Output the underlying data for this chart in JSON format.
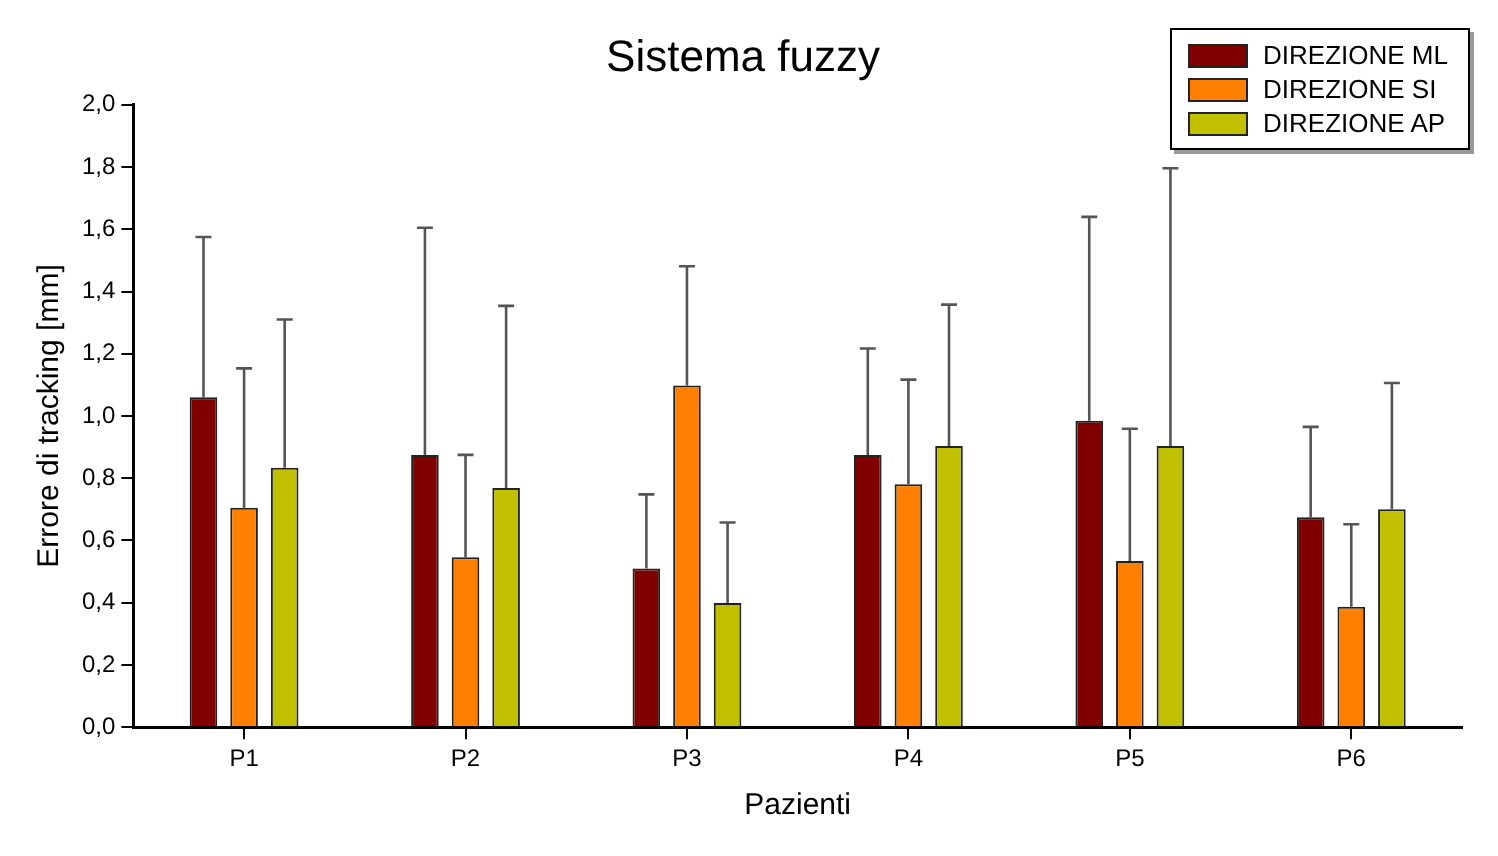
{
  "chart_data": {
    "type": "bar",
    "title": "Sistema fuzzy",
    "xlabel": "Pazienti",
    "ylabel": "Errore di tracking [mm]",
    "categories": [
      "P1",
      "P2",
      "P3",
      "P4",
      "P5",
      "P6"
    ],
    "series": [
      {
        "name": "DIREZIONE ML",
        "color": "#800000",
        "values": [
          1.06,
          0.875,
          0.51,
          0.875,
          0.985,
          0.675
        ],
        "errors": [
          [
            1.06,
            1.575
          ],
          [
            0.875,
            1.605
          ],
          [
            0.51,
            0.748
          ],
          [
            0.875,
            1.217
          ],
          [
            0.985,
            1.64
          ],
          [
            0.675,
            0.965
          ]
        ]
      },
      {
        "name": "DIREZIONE SI",
        "color": "#ff8000",
        "values": [
          0.705,
          0.546,
          1.098,
          0.781,
          0.534,
          0.387
        ],
        "errors": [
          [
            0.705,
            1.153
          ],
          [
            0.546,
            0.875
          ],
          [
            1.098,
            1.481
          ],
          [
            0.781,
            1.117
          ],
          [
            0.534,
            0.959
          ],
          [
            0.387,
            0.652
          ]
        ]
      },
      {
        "name": "DIREZIONE AP",
        "color": "#c0c000",
        "values": [
          0.834,
          0.769,
          0.399,
          0.904,
          0.904,
          0.7
        ],
        "errors": [
          [
            0.834,
            1.31
          ],
          [
            0.769,
            1.354
          ],
          [
            0.399,
            0.658
          ],
          [
            0.904,
            1.358
          ],
          [
            0.904,
            1.796
          ],
          [
            0.7,
            1.106
          ]
        ]
      }
    ],
    "ylim": [
      0,
      2
    ],
    "yticks": [
      {
        "value": 0,
        "label": "0,0"
      },
      {
        "value": 0.2,
        "label": "0,2"
      },
      {
        "value": 0.4,
        "label": "0,4"
      },
      {
        "value": 0.6,
        "label": "0,6"
      },
      {
        "value": 0.8,
        "label": "0,8"
      },
      {
        "value": 1,
        "label": "1,0"
      },
      {
        "value": 1.2,
        "label": "1,2"
      },
      {
        "value": 1.4,
        "label": "1,4"
      },
      {
        "value": 1.6,
        "label": "1,6"
      },
      {
        "value": 1.8,
        "label": "1,8"
      },
      {
        "value": 2,
        "label": "2,0"
      }
    ],
    "grid": false,
    "legend": "top right"
  }
}
